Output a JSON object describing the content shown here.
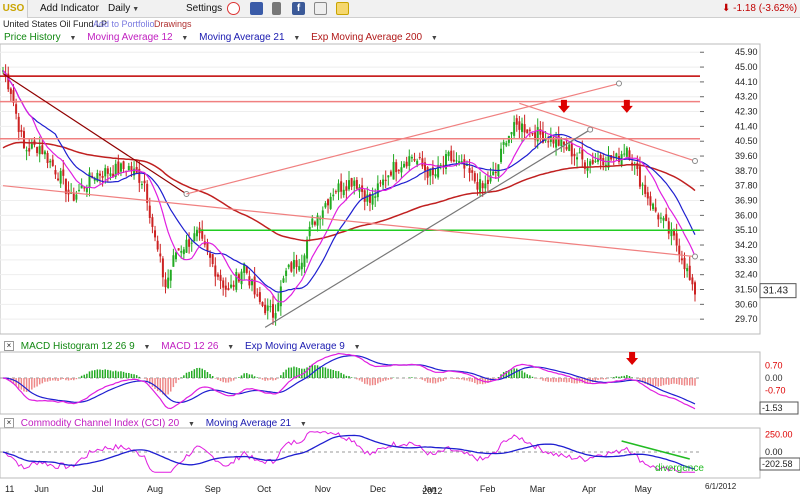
{
  "toolbar": {
    "symbol": "USO",
    "add_indicator": "Add Indicator",
    "interval": "Daily",
    "settings": "Settings",
    "price_change": "-1.18 (-3.62%)",
    "icons": [
      "alarm-clock-icon",
      "book-icon",
      "phone-icon",
      "facebook-icon",
      "email-icon",
      "sticky-note-icon"
    ]
  },
  "subbar": {
    "name": "United States Oil Fund LP",
    "add_portfolio": "Add to Portfolio",
    "drawings": "Drawings"
  },
  "main_legend": [
    "Price History",
    "Moving Average 12",
    "Moving Average 21",
    "Exp Moving Average 200"
  ],
  "macd_legend": [
    "MACD Histogram 12 26 9",
    "MACD 12 26",
    "Exp Moving Average 9"
  ],
  "cci_legend": [
    "Commodity Channel Index (CCI) 20",
    "Moving Average 21"
  ],
  "colors": {
    "up": "#22aa22",
    "down": "#cc2222",
    "ma12": "#e01fe0",
    "ma21": "#1f1fd0",
    "ema200": "#c02020",
    "grid": "#dddddd",
    "trend_pink": "#f08080",
    "green_line": "#22cc22",
    "arrow": "#dd0000",
    "annot_green": "#22bb22"
  },
  "chart_data": [
    {
      "type": "candlestick",
      "title": "Price History",
      "y_ticks": [
        "45.90",
        "45.00",
        "44.10",
        "43.20",
        "42.30",
        "41.40",
        "40.50",
        "39.60",
        "38.70",
        "37.80",
        "36.90",
        "36.00",
        "35.10",
        "34.20",
        "33.30",
        "32.40",
        "31.50",
        "30.60",
        "29.70"
      ],
      "ylim": [
        28.8,
        46.4
      ],
      "x_labels": [
        "11",
        "Jun",
        "Jul",
        "Aug",
        "Sep",
        "Oct",
        "Nov",
        "Dec",
        "Jan",
        "Feb",
        "Mar",
        "Apr",
        "May",
        "6/1/2012"
      ],
      "year_label": "2012",
      "last_price": "31.43",
      "anchors": [
        {
          "d": 0,
          "p": 44.8
        },
        {
          "d": 3,
          "p": 43.6
        },
        {
          "d": 8,
          "p": 40.0
        },
        {
          "d": 14,
          "p": 40.2
        },
        {
          "d": 22,
          "p": 38.3
        },
        {
          "d": 26,
          "p": 37.0
        },
        {
          "d": 35,
          "p": 38.5
        },
        {
          "d": 48,
          "p": 38.9
        },
        {
          "d": 54,
          "p": 38.0
        },
        {
          "d": 58,
          "p": 34.5
        },
        {
          "d": 62,
          "p": 31.7
        },
        {
          "d": 66,
          "p": 33.8
        },
        {
          "d": 74,
          "p": 34.8
        },
        {
          "d": 80,
          "p": 33.0
        },
        {
          "d": 86,
          "p": 31.3
        },
        {
          "d": 92,
          "p": 33.0
        },
        {
          "d": 97,
          "p": 30.8
        },
        {
          "d": 103,
          "p": 30.0
        },
        {
          "d": 108,
          "p": 32.5
        },
        {
          "d": 114,
          "p": 33.5
        },
        {
          "d": 118,
          "p": 35.5
        },
        {
          "d": 126,
          "p": 37.5
        },
        {
          "d": 134,
          "p": 38.2
        },
        {
          "d": 140,
          "p": 36.8
        },
        {
          "d": 148,
          "p": 38.8
        },
        {
          "d": 156,
          "p": 39.6
        },
        {
          "d": 164,
          "p": 38.3
        },
        {
          "d": 170,
          "p": 39.5
        },
        {
          "d": 176,
          "p": 38.8
        },
        {
          "d": 183,
          "p": 37.6
        },
        {
          "d": 188,
          "p": 38.6
        },
        {
          "d": 192,
          "p": 40.8
        },
        {
          "d": 197,
          "p": 41.5
        },
        {
          "d": 203,
          "p": 41.0
        },
        {
          "d": 210,
          "p": 40.6
        },
        {
          "d": 216,
          "p": 40.0
        },
        {
          "d": 222,
          "p": 39.2
        },
        {
          "d": 228,
          "p": 39.5
        },
        {
          "d": 234,
          "p": 39.4
        },
        {
          "d": 238,
          "p": 40.2
        },
        {
          "d": 242,
          "p": 38.5
        },
        {
          "d": 248,
          "p": 36.5
        },
        {
          "d": 254,
          "p": 35.0
        },
        {
          "d": 258,
          "p": 34.0
        },
        {
          "d": 261,
          "p": 32.6
        },
        {
          "d": 263,
          "p": 31.4
        }
      ],
      "series": [
        {
          "name": "Moving Average 12",
          "color": "#e01fe0"
        },
        {
          "name": "Moving Average 21",
          "color": "#1f1fd0"
        },
        {
          "name": "Exp Moving Average 200",
          "color": "#c02020"
        }
      ],
      "trendlines": [
        {
          "kind": "horizontal",
          "price": 44.45,
          "color": "#c00000"
        },
        {
          "kind": "horizontal",
          "price": 42.9,
          "color": "#f08080"
        },
        {
          "kind": "horizontal",
          "price": 40.65,
          "color": "#f08080"
        },
        {
          "kind": "horizontal",
          "price": 35.1,
          "color": "#22cc22",
          "from_day": 75
        },
        {
          "kind": "line",
          "from": [
            0,
            44.6
          ],
          "to": [
            70,
            37.3
          ],
          "color": "#900000"
        },
        {
          "kind": "line",
          "from": [
            70,
            37.3
          ],
          "to": [
            235,
            44.0
          ],
          "color": "#f08080"
        },
        {
          "kind": "line",
          "from": [
            197,
            42.8
          ],
          "to": [
            264,
            39.3
          ],
          "color": "#f08080"
        },
        {
          "kind": "line",
          "from": [
            0,
            37.8
          ],
          "to": [
            264,
            33.5
          ],
          "color": "#f08080"
        },
        {
          "kind": "line",
          "from": [
            100,
            29.2
          ],
          "to": [
            224,
            41.2
          ],
          "color": "#777777"
        }
      ],
      "arrows_days": [
        214,
        238
      ]
    },
    {
      "type": "histogram",
      "title": "MACD Histogram 12 26 9",
      "y_ticks": [
        "0.70",
        "0.00",
        "-0.70"
      ],
      "last_value": "-1.53",
      "annotation_arrow_day": 240
    },
    {
      "type": "line",
      "title": "Commodity Channel Index (CCI) 20",
      "y_ticks": [
        "250.00",
        "0.00"
      ],
      "last_value": "-202.58",
      "annotation": "divergence"
    }
  ]
}
